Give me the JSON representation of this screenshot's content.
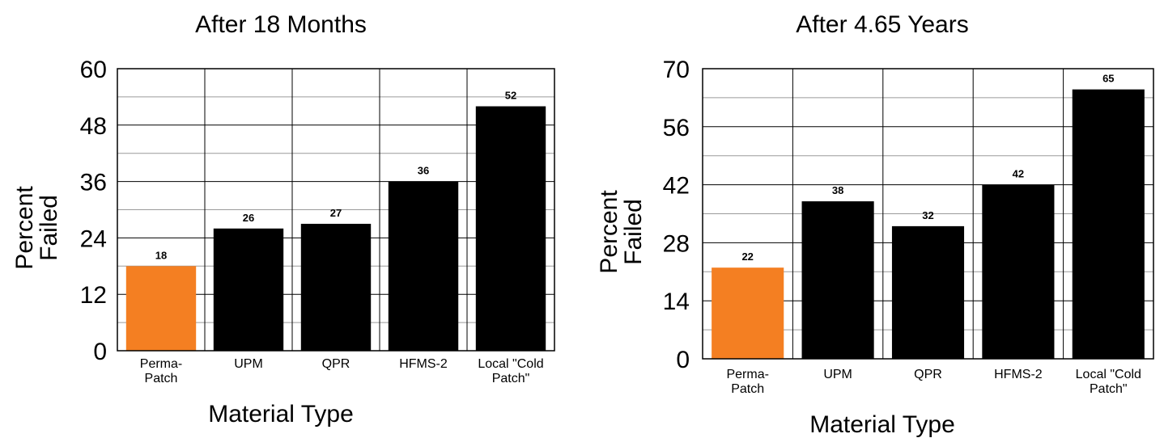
{
  "colors": {
    "highlight": "#f47f22",
    "bar": "#000000",
    "grid": "#000000",
    "minor_grid": "#9a9a9a"
  },
  "chart_data": [
    {
      "type": "bar",
      "title": "After 18 Months",
      "ylabel_lines": [
        "Percent",
        "Failed"
      ],
      "xlabel": "Material Type",
      "categories": [
        [
          "Perma-",
          "Patch"
        ],
        [
          "UPM"
        ],
        [
          "QPR"
        ],
        [
          "HFMS-2"
        ],
        [
          "Local \"Cold",
          "Patch\""
        ]
      ],
      "values": [
        18,
        26,
        27,
        36,
        52
      ],
      "data_labels": [
        "18",
        "26",
        "27",
        "36",
        "52"
      ],
      "highlight_index": 0,
      "ylim": [
        0,
        60
      ],
      "yticks": [
        0,
        12,
        24,
        36,
        48,
        60
      ],
      "ytick_labels": [
        "0",
        "12",
        "24",
        "36",
        "48",
        "60"
      ],
      "minor_step": 6,
      "grid": true
    },
    {
      "type": "bar",
      "title": "After 4.65 Years",
      "ylabel_lines": [
        "Percent",
        "Failed"
      ],
      "xlabel": "Material Type",
      "categories": [
        [
          "Perma-",
          "Patch"
        ],
        [
          "UPM"
        ],
        [
          "QPR"
        ],
        [
          "HFMS-2"
        ],
        [
          "Local \"Cold",
          "Patch\""
        ]
      ],
      "values": [
        22,
        38,
        32,
        42,
        65
      ],
      "data_labels": [
        "22",
        "38",
        "32",
        "42",
        "65"
      ],
      "highlight_index": 0,
      "ylim": [
        0,
        70
      ],
      "yticks": [
        0,
        14,
        28,
        42,
        56,
        70
      ],
      "ytick_labels": [
        "0",
        "14",
        "28",
        "42",
        "56",
        "70"
      ],
      "minor_step": 7,
      "grid": true
    }
  ]
}
